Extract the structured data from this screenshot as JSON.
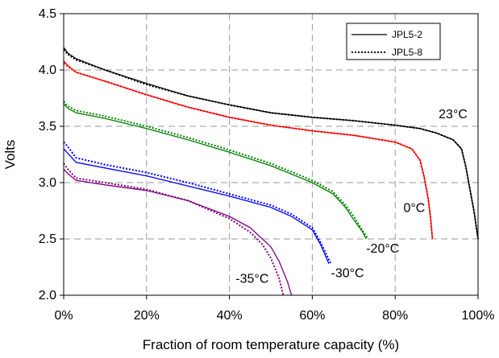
{
  "chart_data": {
    "type": "line",
    "title": "",
    "xlabel": "Fraction of room temperature capacity (%)",
    "ylabel": "Volts",
    "xlim": [
      0,
      100
    ],
    "ylim": [
      2.0,
      4.5
    ],
    "x_ticks": [
      0,
      20,
      40,
      60,
      80,
      100
    ],
    "x_tick_labels": [
      "0%",
      "20%",
      "40%",
      "60%",
      "80%",
      "100%"
    ],
    "y_ticks": [
      2.0,
      2.5,
      3.0,
      3.5,
      4.0,
      4.5
    ],
    "y_tick_labels": [
      "2.0",
      "2.5",
      "3.0",
      "3.5",
      "4.0",
      "4.5"
    ],
    "grid": "dashed",
    "legend": {
      "placement": "top-right",
      "entries": [
        {
          "label": "JPL5-2",
          "style": "solid"
        },
        {
          "label": "JPL5-8",
          "style": "dotted"
        }
      ]
    },
    "annotations": [
      {
        "text": "23°C",
        "x": 90.5,
        "y": 3.57
      },
      {
        "text": "0°C",
        "x": 82,
        "y": 2.74
      },
      {
        "text": "-20°C",
        "x": 73,
        "y": 2.38
      },
      {
        "text": "-30°C",
        "x": 64.5,
        "y": 2.16
      },
      {
        "text": "-35°C",
        "x": 41.5,
        "y": 2.11
      }
    ],
    "series": [
      {
        "temperature": "23°C",
        "cell": "JPL5-2",
        "style": "solid",
        "color": "#000000",
        "x": [
          0,
          1,
          3,
          10,
          20,
          30,
          40,
          50,
          60,
          70,
          80,
          86,
          90,
          94,
          96,
          97,
          98,
          99,
          100
        ],
        "y": [
          4.2,
          4.15,
          4.1,
          4.0,
          3.88,
          3.77,
          3.69,
          3.62,
          3.58,
          3.55,
          3.51,
          3.48,
          3.44,
          3.38,
          3.3,
          3.15,
          2.95,
          2.75,
          2.5
        ]
      },
      {
        "temperature": "23°C",
        "cell": "JPL5-8",
        "style": "dotted",
        "color": "#000000",
        "x": [
          0,
          1,
          3,
          10,
          20,
          30,
          40,
          50,
          60,
          70,
          80,
          86,
          90,
          94,
          96,
          97,
          98,
          99,
          100
        ],
        "y": [
          4.18,
          4.14,
          4.09,
          4.0,
          3.87,
          3.77,
          3.69,
          3.62,
          3.58,
          3.55,
          3.51,
          3.48,
          3.44,
          3.38,
          3.3,
          3.15,
          2.95,
          2.75,
          2.5
        ]
      },
      {
        "temperature": "0°C",
        "cell": "JPL5-2",
        "style": "solid",
        "color": "#ff0000",
        "x": [
          0,
          1,
          3,
          10,
          20,
          30,
          40,
          50,
          60,
          70,
          80,
          84,
          86,
          87,
          88,
          88.5,
          89
        ],
        "y": [
          4.08,
          4.04,
          3.98,
          3.9,
          3.78,
          3.67,
          3.58,
          3.51,
          3.46,
          3.42,
          3.36,
          3.3,
          3.2,
          3.05,
          2.85,
          2.7,
          2.5
        ]
      },
      {
        "temperature": "0°C",
        "cell": "JPL5-8",
        "style": "dotted",
        "color": "#ff0000",
        "x": [
          0,
          1,
          3,
          10,
          20,
          30,
          40,
          50,
          60,
          70,
          80,
          84,
          86,
          87,
          88,
          88.5,
          89
        ],
        "y": [
          4.06,
          4.03,
          3.98,
          3.9,
          3.78,
          3.67,
          3.58,
          3.51,
          3.46,
          3.42,
          3.36,
          3.3,
          3.2,
          3.05,
          2.85,
          2.7,
          2.5
        ]
      },
      {
        "temperature": "-20°C",
        "cell": "JPL5-2",
        "style": "solid",
        "color": "#008000",
        "x": [
          0,
          1,
          3,
          10,
          20,
          30,
          40,
          50,
          60,
          65,
          68,
          70,
          72,
          73
        ],
        "y": [
          3.7,
          3.66,
          3.62,
          3.57,
          3.48,
          3.38,
          3.27,
          3.15,
          3.0,
          2.9,
          2.78,
          2.67,
          2.57,
          2.5
        ]
      },
      {
        "temperature": "-20°C",
        "cell": "JPL5-8",
        "style": "dotted",
        "color": "#008000",
        "x": [
          0,
          1,
          3,
          10,
          20,
          30,
          40,
          50,
          60,
          65,
          68,
          70,
          72,
          73.5
        ],
        "y": [
          3.72,
          3.68,
          3.64,
          3.59,
          3.5,
          3.4,
          3.29,
          3.17,
          3.02,
          2.92,
          2.8,
          2.7,
          2.58,
          2.5
        ]
      },
      {
        "temperature": "-30°C",
        "cell": "JPL5-2",
        "style": "solid",
        "color": "#0000ff",
        "x": [
          0,
          1,
          3,
          10,
          20,
          30,
          40,
          50,
          55,
          60,
          62,
          64
        ],
        "y": [
          3.3,
          3.26,
          3.18,
          3.13,
          3.06,
          2.97,
          2.88,
          2.78,
          2.7,
          2.58,
          2.45,
          2.28
        ]
      },
      {
        "temperature": "-30°C",
        "cell": "JPL5-8",
        "style": "dotted",
        "color": "#0000ff",
        "x": [
          0,
          1,
          3,
          10,
          20,
          30,
          40,
          50,
          55,
          60,
          62,
          64.5
        ],
        "y": [
          3.36,
          3.32,
          3.22,
          3.16,
          3.09,
          3.0,
          2.9,
          2.8,
          2.72,
          2.6,
          2.47,
          2.28
        ]
      },
      {
        "temperature": "-35°C",
        "cell": "JPL5-2",
        "style": "solid",
        "color": "#800080",
        "x": [
          0,
          1,
          3,
          10,
          20,
          30,
          40,
          45,
          50,
          52,
          54,
          55
        ],
        "y": [
          3.12,
          3.08,
          3.02,
          2.98,
          2.93,
          2.84,
          2.7,
          2.6,
          2.43,
          2.3,
          2.12,
          2.0
        ]
      },
      {
        "temperature": "-35°C",
        "cell": "JPL5-8",
        "style": "dotted",
        "color": "#800080",
        "x": [
          0,
          1,
          3,
          10,
          20,
          30,
          40,
          45,
          48,
          50,
          52,
          53
        ],
        "y": [
          3.17,
          3.12,
          3.04,
          3.0,
          2.94,
          2.84,
          2.68,
          2.56,
          2.45,
          2.33,
          2.15,
          2.0
        ]
      }
    ]
  }
}
